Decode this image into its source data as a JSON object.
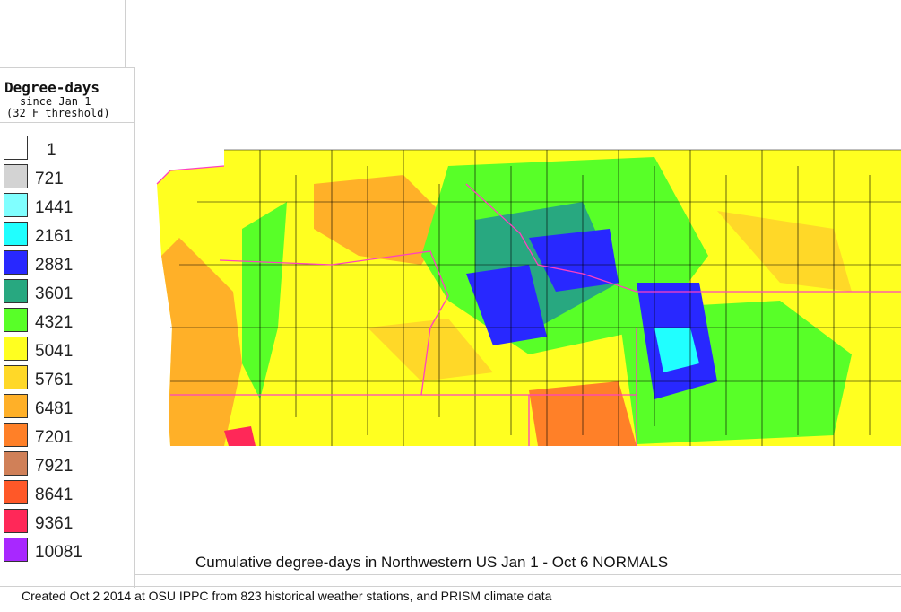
{
  "legend": {
    "title": "Degree-days",
    "subtitle_1": "since Jan 1",
    "subtitle_2": "(32 F threshold)",
    "items": [
      {
        "label": "1",
        "color": "#ffffff"
      },
      {
        "label": "721",
        "color": "#d3d3d3"
      },
      {
        "label": "1441",
        "color": "#80ffff"
      },
      {
        "label": "2161",
        "color": "#20ffff"
      },
      {
        "label": "2881",
        "color": "#2828ff"
      },
      {
        "label": "3601",
        "color": "#28a880"
      },
      {
        "label": "4321",
        "color": "#58ff28"
      },
      {
        "label": "5041",
        "color": "#ffff20"
      },
      {
        "label": "5761",
        "color": "#ffd828"
      },
      {
        "label": "6481",
        "color": "#ffb028"
      },
      {
        "label": "7201",
        "color": "#ff8028"
      },
      {
        "label": "7921",
        "color": "#d08058"
      },
      {
        "label": "8641",
        "color": "#ff5828"
      },
      {
        "label": "9361",
        "color": "#ff2858"
      },
      {
        "label": "10081",
        "color": "#a828ff"
      }
    ]
  },
  "map": {
    "title": "Cumulative degree-days in Northwestern US Jan 1 - Oct 6 NORMALS",
    "state_border_color": "#ff40c0",
    "county_border_color": "#000000"
  },
  "footer": "Created Oct 2 2014 at OSU IPPC from 823 historical weather stations, and PRISM climate data"
}
